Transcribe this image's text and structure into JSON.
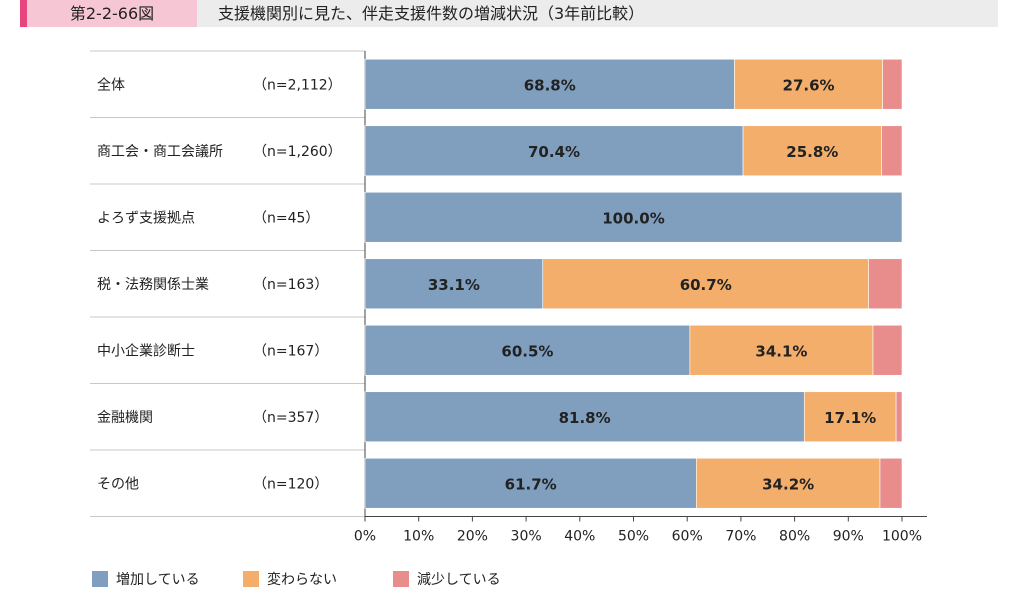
{
  "header": {
    "figure_label": "第2-2-66図",
    "title": "支援機関別に見た、伴走支援件数の増減状況（3年前比較）"
  },
  "chart_data": {
    "type": "bar",
    "orientation": "horizontal",
    "stacked": true,
    "categories": [
      "全体",
      "商工会・商工会議所",
      "よろず支援拠点",
      "税・法務関係士業",
      "中小企業診断士",
      "金融機関",
      "その他"
    ],
    "sample_sizes": [
      "（n=2,112）",
      "（n=1,260）",
      "（n=45）",
      "（n=163）",
      "（n=167）",
      "（n=357）",
      "（n=120）"
    ],
    "series": [
      {
        "name": "増加している",
        "color": "#809fbf",
        "values": [
          68.8,
          70.4,
          100.0,
          33.1,
          60.5,
          81.8,
          61.7
        ],
        "labels": [
          "68.8%",
          "70.4%",
          "100.0%",
          "33.1%",
          "60.5%",
          "81.8%",
          "61.7%"
        ]
      },
      {
        "name": "変わらない",
        "color": "#f4ae6b",
        "values": [
          27.6,
          25.8,
          0.0,
          60.7,
          34.1,
          17.1,
          34.2
        ],
        "labels": [
          "27.6%",
          "25.8%",
          "",
          "60.7%",
          "34.1%",
          "17.1%",
          "34.2%"
        ]
      },
      {
        "name": "減少している",
        "color": "#e88c8c",
        "values": [
          3.6,
          3.8,
          0.0,
          6.2,
          5.4,
          1.1,
          4.1
        ],
        "labels": [
          "",
          "",
          "",
          "",
          "",
          "",
          ""
        ]
      }
    ],
    "xlim": [
      0,
      100
    ],
    "xticks": [
      "0%",
      "10%",
      "20%",
      "30%",
      "40%",
      "50%",
      "60%",
      "70%",
      "80%",
      "90%",
      "100%"
    ],
    "legend_position": "bottom-left"
  }
}
